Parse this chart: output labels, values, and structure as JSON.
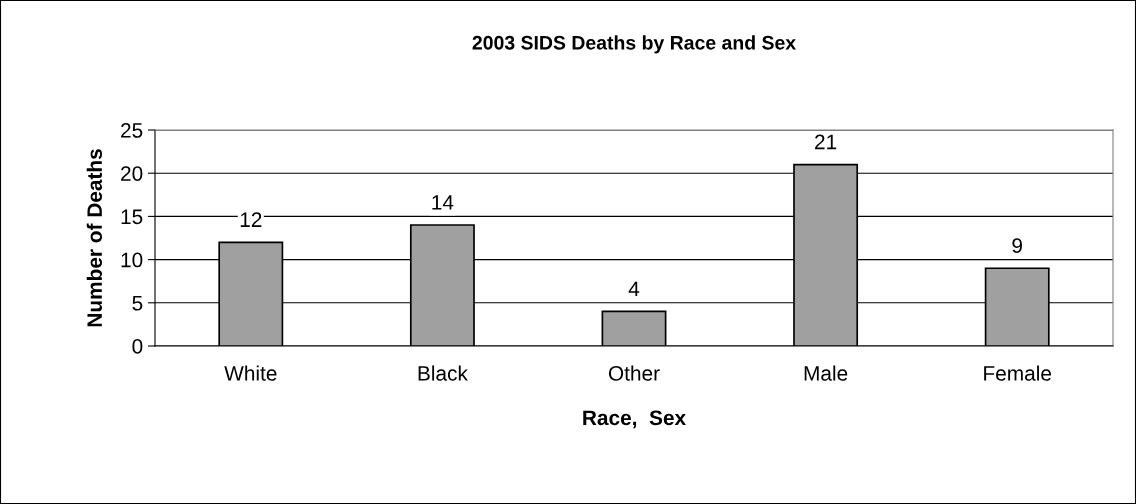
{
  "chart_data": {
    "type": "bar",
    "title": "2003 SIDS Deaths by Race and Sex",
    "xlabel": "Race,  Sex",
    "ylabel": "Number of Deaths",
    "categories": [
      "White",
      "Black",
      "Other",
      "Male",
      "Female"
    ],
    "values": [
      12,
      14,
      4,
      21,
      9
    ],
    "color": "#a0a0a0",
    "ylim": [
      0,
      25
    ],
    "yticks": [
      0,
      5,
      10,
      15,
      20,
      25
    ],
    "grid": "y",
    "data_labels": true
  }
}
